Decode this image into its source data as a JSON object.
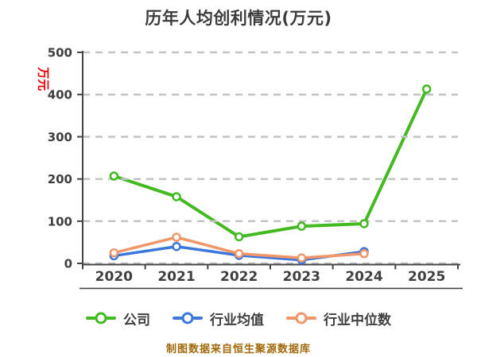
{
  "title": "历年人均创利情况(万元)",
  "footer": "制图数据来自恒生聚源数据库",
  "colors": {
    "background": "#ffffff",
    "title_text": "#3c3c3c",
    "tick_text": "#3f3f3f",
    "grid": "#c3c3c3",
    "axis": "#444444",
    "y_axis_name": "#e60000",
    "footer_text": "#a0690a",
    "series_company": "#44ba22",
    "series_industry_avg": "#3c78dc",
    "series_industry_median": "#f09669"
  },
  "chart_data": {
    "type": "line",
    "title": "历年人均创利情况(万元)",
    "categories": [
      "2020",
      "2021",
      "2022",
      "2023",
      "2024",
      "2025"
    ],
    "series": [
      {
        "name": "公司",
        "color": "#44ba22",
        "values": [
          207,
          158,
          63,
          88,
          94,
          413
        ]
      },
      {
        "name": "行业均值",
        "color": "#3c78dc",
        "values": [
          18,
          40,
          19,
          8,
          28,
          null
        ]
      },
      {
        "name": "行业中位数",
        "color": "#f09669",
        "values": [
          25,
          62,
          23,
          13,
          23,
          null
        ]
      }
    ],
    "xlabel": "",
    "ylabel": "万元",
    "ylim": [
      0,
      500
    ],
    "yticks": [
      0,
      100,
      200,
      300,
      400,
      500
    ],
    "grid": "horizontal-dashed",
    "legend_position": "bottom",
    "marker": "circle-white-fill"
  }
}
